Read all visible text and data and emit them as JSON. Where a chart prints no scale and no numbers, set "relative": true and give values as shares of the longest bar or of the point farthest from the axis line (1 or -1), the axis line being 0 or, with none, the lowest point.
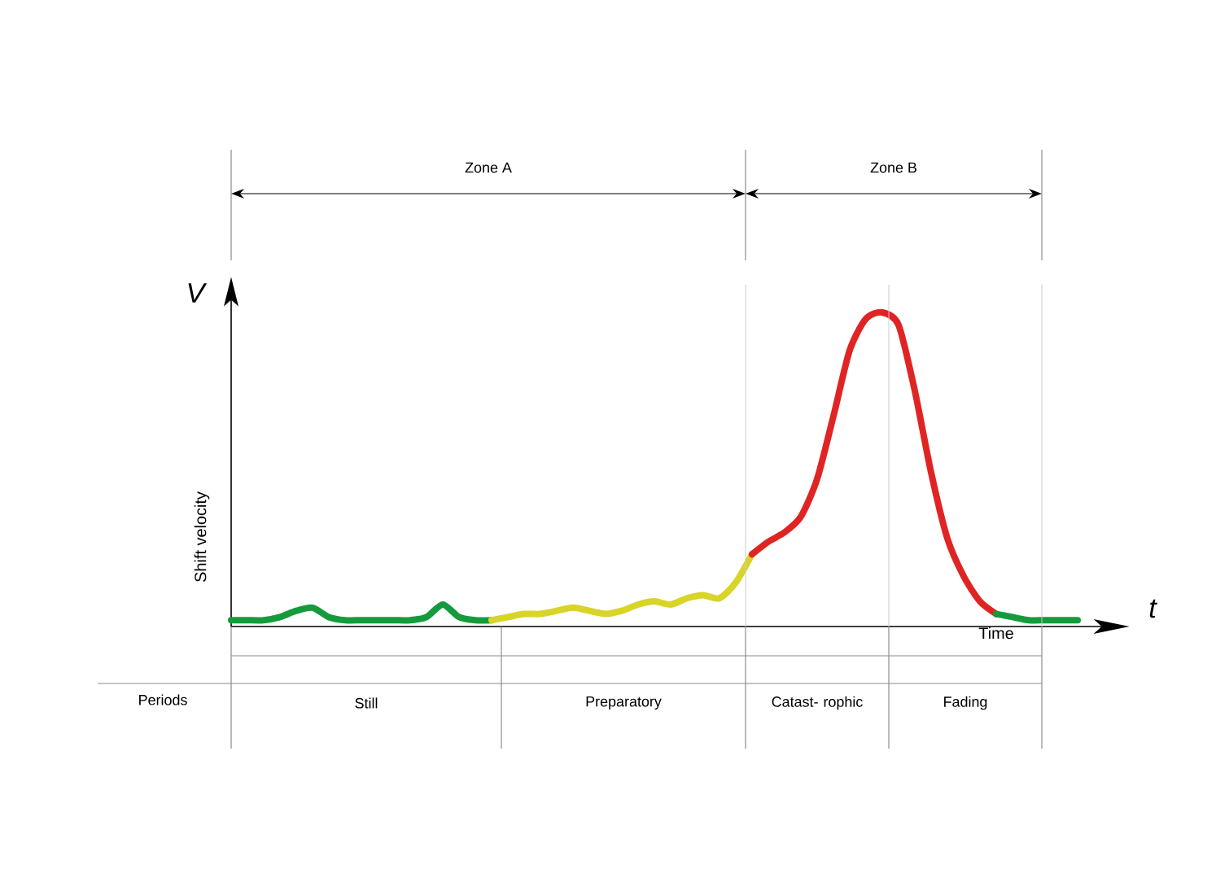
{
  "chart_data": {
    "type": "line",
    "relative": true,
    "xlabel": "Time",
    "ylabel": "Shift velocity",
    "categories": [
      null,
      null,
      null,
      null,
      null,
      null,
      null,
      null,
      null,
      null,
      null,
      null,
      null,
      null,
      null,
      null,
      null,
      null,
      null,
      null,
      null,
      null,
      null,
      null,
      null,
      null,
      null,
      null,
      null,
      null,
      null,
      null,
      null,
      null,
      null,
      null,
      null,
      null,
      null,
      null,
      null,
      null,
      null,
      null,
      null,
      null,
      null,
      null,
      null,
      null,
      null,
      null,
      null
    ],
    "series": [
      {
        "color": "#169b3c",
        "values": [
          0.02,
          0.02,
          0.02,
          0.03,
          0.05,
          0.06,
          0.03,
          0.02,
          0.02,
          0.02,
          0.02,
          0.02,
          0.03,
          0.07,
          0.03,
          0.02,
          0.02,
          null,
          null,
          null,
          null,
          null,
          null,
          null,
          null,
          null,
          null,
          null,
          null,
          null,
          null,
          null,
          null,
          null,
          null,
          null,
          null,
          null,
          null,
          null,
          null,
          null,
          null,
          null,
          null,
          null,
          null,
          null,
          null,
          null,
          null,
          null,
          null
        ]
      },
      {
        "color": "#d8d428",
        "values": [
          null,
          null,
          null,
          null,
          null,
          null,
          null,
          null,
          null,
          null,
          null,
          null,
          null,
          null,
          null,
          null,
          0.02,
          0.03,
          0.04,
          0.04,
          0.05,
          0.06,
          0.05,
          0.04,
          0.05,
          0.07,
          0.08,
          0.07,
          0.09,
          0.1,
          0.09,
          0.14,
          0.23,
          null,
          null,
          null,
          null,
          null,
          null,
          null,
          null,
          null,
          null,
          null,
          null,
          null,
          null,
          null,
          null,
          null,
          null,
          null,
          null
        ]
      },
      {
        "color": "#e02424",
        "values": [
          null,
          null,
          null,
          null,
          null,
          null,
          null,
          null,
          null,
          null,
          null,
          null,
          null,
          null,
          null,
          null,
          null,
          null,
          null,
          null,
          null,
          null,
          null,
          null,
          null,
          null,
          null,
          null,
          null,
          null,
          null,
          null,
          0.23,
          0.27,
          0.3,
          0.35,
          0.47,
          0.67,
          0.88,
          0.98,
          1.0,
          0.96,
          0.75,
          0.49,
          0.28,
          0.16,
          0.08,
          0.04,
          null,
          null,
          null,
          null,
          null
        ]
      },
      {
        "color": "#169b3c",
        "values": [
          null,
          null,
          null,
          null,
          null,
          null,
          null,
          null,
          null,
          null,
          null,
          null,
          null,
          null,
          null,
          null,
          null,
          null,
          null,
          null,
          null,
          null,
          null,
          null,
          null,
          null,
          null,
          null,
          null,
          null,
          null,
          null,
          null,
          null,
          null,
          null,
          null,
          null,
          null,
          null,
          null,
          null,
          null,
          null,
          null,
          null,
          null,
          0.04,
          0.03,
          0.02,
          0.02,
          0.02,
          0.02
        ]
      }
    ],
    "annotations": [
      "V",
      "t",
      "Zone A",
      "Zone B",
      "Periods",
      "Still",
      "Preparatory",
      "Catast- rophic",
      "Fading"
    ]
  }
}
